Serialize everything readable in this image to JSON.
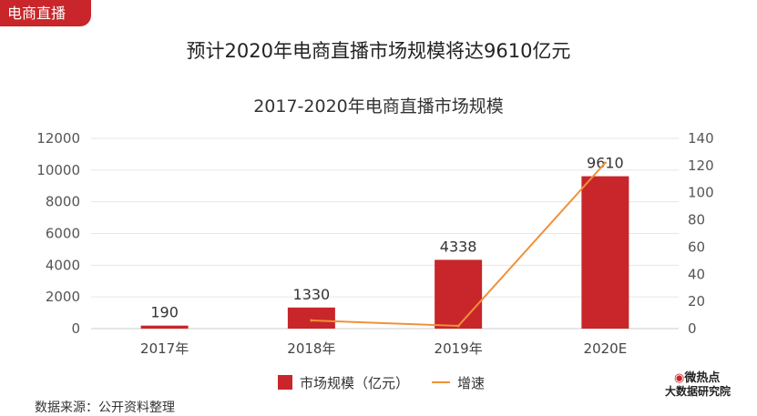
{
  "tag": "电商直播",
  "main_title": "预计2020年电商直播市场规模将达9610亿元",
  "source": "数据来源：公开资料整理",
  "logo": {
    "top": "微热点",
    "bottom": "大数据研究院"
  },
  "colors": {
    "bar": "#c8262a",
    "line": "#f0913a",
    "tag": "#c8262a"
  },
  "chart_data": {
    "type": "bar",
    "title": "2017-2020年电商直播市场规模",
    "categories": [
      "2017年",
      "2018年",
      "2019年",
      "2020E"
    ],
    "series": [
      {
        "name": "市场规模（亿元）",
        "type": "bar",
        "axis": "left",
        "values": [
          190,
          1330,
          4338,
          9610
        ],
        "labels": [
          "190",
          "1330",
          "4338",
          "9610"
        ]
      },
      {
        "name": "增速",
        "type": "line",
        "axis": "right",
        "values": [
          null,
          6,
          2,
          122
        ]
      }
    ],
    "ylim_left": [
      0,
      12000
    ],
    "yticks_left": [
      "0",
      "2000",
      "4000",
      "6000",
      "8000",
      "10000",
      "12000"
    ],
    "ylim_right": [
      0,
      140
    ],
    "yticks_right": [
      "0",
      "20",
      "40",
      "60",
      "80",
      "100",
      "120",
      "140"
    ],
    "grid": true,
    "legend_position": "bottom"
  }
}
